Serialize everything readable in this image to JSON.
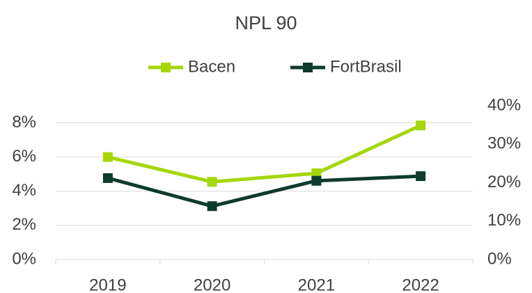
{
  "chart_data": {
    "type": "line",
    "title": "NPL 90",
    "categories": [
      "2019",
      "2020",
      "2021",
      "2022"
    ],
    "series": [
      {
        "name": "Bacen",
        "color": "#a6d609",
        "values": [
          6.0,
          4.55,
          5.05,
          7.85
        ]
      },
      {
        "name": "FortBrasil",
        "color": "#0e3b2e",
        "axis": "y2",
        "values": [
          21.2,
          13.9,
          20.5,
          21.7
        ]
      }
    ],
    "ylim": [
      0,
      9
    ],
    "yticks": [
      {
        "value": 0,
        "label": "0%"
      },
      {
        "value": 2,
        "label": "2%"
      },
      {
        "value": 4,
        "label": "4%"
      },
      {
        "value": 6,
        "label": "6%"
      },
      {
        "value": 8,
        "label": "8%"
      }
    ],
    "y2lim": [
      0,
      40
    ],
    "y2ticks": [
      {
        "value": 0,
        "label": "0%"
      },
      {
        "value": 10,
        "label": "10%"
      },
      {
        "value": 20,
        "label": "20%"
      },
      {
        "value": 30,
        "label": "30%"
      },
      {
        "value": 40,
        "label": "40%"
      }
    ],
    "grid": true,
    "legend": "top"
  }
}
